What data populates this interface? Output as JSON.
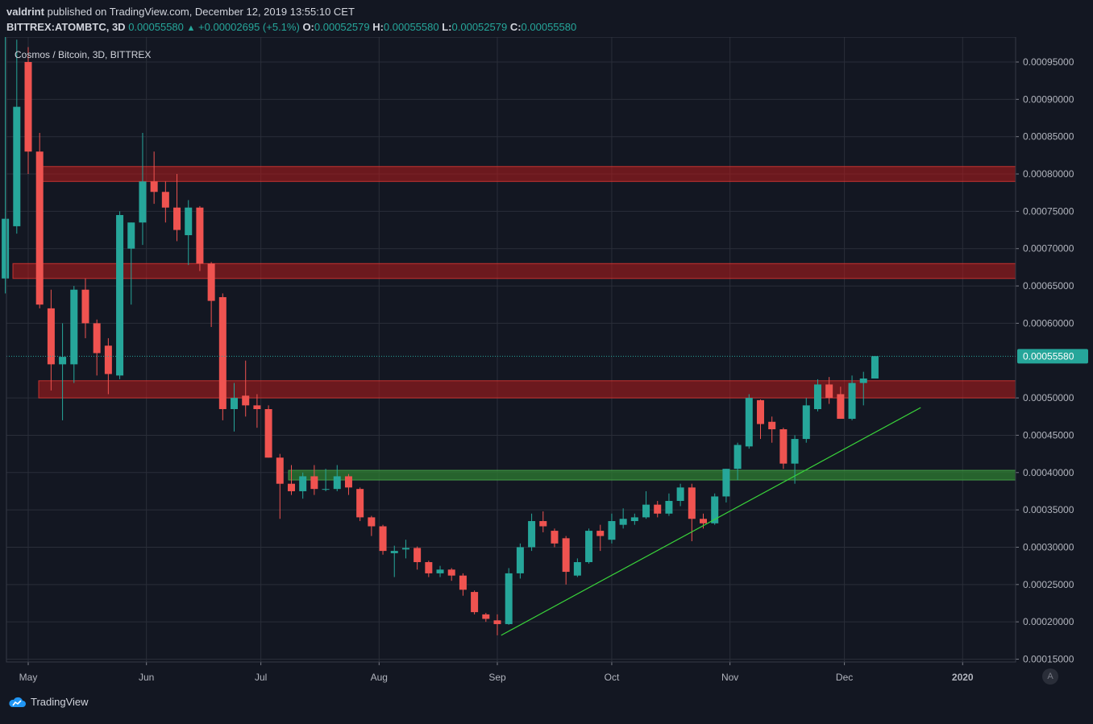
{
  "header": {
    "publisher": "valdrint",
    "published_text": "published on TradingView.com, December 12, 2019 13:55:10 CET",
    "symbol": "BITTREX:ATOMBTC, 3D",
    "last": "0.00055580",
    "change": "+0.00002695 (+5.1%)",
    "o_label": "O:",
    "o_value": "0.00052579",
    "h_label": "H:",
    "h_value": "0.00055580",
    "l_label": "L:",
    "l_value": "0.00052579",
    "c_label": "C:",
    "c_value": "0.00055580"
  },
  "chart_title": "Cosmos / Bitcoin, 3D, BITTREX",
  "footer": {
    "logo_text": "TradingView",
    "auto_label": "A"
  },
  "colors": {
    "up": "#26a69a",
    "down": "#ef5350",
    "resistance_zone": "#b71c1c",
    "support_zone": "#2e7d32",
    "trendline": "#39d33a",
    "price_label_bg": "#26a69a",
    "grid": "#2a2e39"
  },
  "chart_data": {
    "type": "candlestick",
    "x_ticks": [
      "May",
      "Jun",
      "Jul",
      "Aug",
      "Sep",
      "Oct",
      "Nov",
      "Dec",
      "2020"
    ],
    "y_ticks": [
      "0.00095000",
      "0.00090000",
      "0.00085000",
      "0.00080000",
      "0.00075000",
      "0.00070000",
      "0.00065000",
      "0.00060000",
      "0.00050000",
      "0.00045000",
      "0.00040000",
      "0.00035000",
      "0.00030000",
      "0.00025000",
      "0.00020000",
      "0.00015000"
    ],
    "ylim": [
      0.000148,
      0.000978
    ],
    "last_price_label": "0.00055580",
    "last_price": 0.0005558,
    "candles": [
      {
        "date": "2019-04-25",
        "o": 0.00066,
        "h": 0.00099,
        "l": 0.00064,
        "c": 0.00074
      },
      {
        "date": "2019-04-28",
        "o": 0.00073,
        "h": 0.00098,
        "l": 0.00072,
        "c": 0.00089
      },
      {
        "date": "2019-05-01",
        "o": 0.00095,
        "h": 0.00097,
        "l": 0.0008,
        "c": 0.00083
      },
      {
        "date": "2019-05-04",
        "o": 0.00083,
        "h": 0.000855,
        "l": 0.00062,
        "c": 0.000625
      },
      {
        "date": "2019-05-07",
        "o": 0.00062,
        "h": 0.000645,
        "l": 0.00051,
        "c": 0.000545
      },
      {
        "date": "2019-05-10",
        "o": 0.000545,
        "h": 0.0006,
        "l": 0.00047,
        "c": 0.000555
      },
      {
        "date": "2019-05-13",
        "o": 0.000545,
        "h": 0.00065,
        "l": 0.00052,
        "c": 0.000645
      },
      {
        "date": "2019-05-16",
        "o": 0.000645,
        "h": 0.00066,
        "l": 0.00058,
        "c": 0.0006
      },
      {
        "date": "2019-05-19",
        "o": 0.0006,
        "h": 0.000605,
        "l": 0.00053,
        "c": 0.00056
      },
      {
        "date": "2019-05-22",
        "o": 0.00057,
        "h": 0.00058,
        "l": 0.000505,
        "c": 0.000532
      },
      {
        "date": "2019-05-25",
        "o": 0.00053,
        "h": 0.00075,
        "l": 0.000525,
        "c": 0.000745
      },
      {
        "date": "2019-05-28",
        "o": 0.0007,
        "h": 0.000735,
        "l": 0.000625,
        "c": 0.000735
      },
      {
        "date": "2019-05-31",
        "o": 0.000735,
        "h": 0.000855,
        "l": 0.000705,
        "c": 0.00079
      },
      {
        "date": "2019-06-03",
        "o": 0.00079,
        "h": 0.00083,
        "l": 0.00076,
        "c": 0.000776
      },
      {
        "date": "2019-06-06",
        "o": 0.000776,
        "h": 0.00079,
        "l": 0.000735,
        "c": 0.000755
      },
      {
        "date": "2019-06-09",
        "o": 0.000755,
        "h": 0.0008,
        "l": 0.00071,
        "c": 0.000725
      },
      {
        "date": "2019-06-12",
        "o": 0.000718,
        "h": 0.000765,
        "l": 0.000678,
        "c": 0.000755
      },
      {
        "date": "2019-06-15",
        "o": 0.000755,
        "h": 0.000757,
        "l": 0.00067,
        "c": 0.00068
      },
      {
        "date": "2019-06-18",
        "o": 0.00068,
        "h": 0.000682,
        "l": 0.000595,
        "c": 0.00063
      },
      {
        "date": "2019-06-21",
        "o": 0.000635,
        "h": 0.00064,
        "l": 0.00047,
        "c": 0.000485
      },
      {
        "date": "2019-06-24",
        "o": 0.000485,
        "h": 0.00052,
        "l": 0.000455,
        "c": 0.0005
      },
      {
        "date": "2019-06-27",
        "o": 0.000503,
        "h": 0.00055,
        "l": 0.000475,
        "c": 0.00049
      },
      {
        "date": "2019-06-30",
        "o": 0.00049,
        "h": 0.000505,
        "l": 0.00046,
        "c": 0.000485
      },
      {
        "date": "2019-07-03",
        "o": 0.000485,
        "h": 0.00049,
        "l": 0.00042,
        "c": 0.00042
      },
      {
        "date": "2019-07-06",
        "o": 0.00042,
        "h": 0.000425,
        "l": 0.000338,
        "c": 0.000385
      },
      {
        "date": "2019-07-09",
        "o": 0.000385,
        "h": 0.00041,
        "l": 0.00037,
        "c": 0.000375
      },
      {
        "date": "2019-07-12",
        "o": 0.000375,
        "h": 0.0004,
        "l": 0.000365,
        "c": 0.000395
      },
      {
        "date": "2019-07-15",
        "o": 0.000395,
        "h": 0.00041,
        "l": 0.00037,
        "c": 0.000378
      },
      {
        "date": "2019-07-18",
        "o": 0.000378,
        "h": 0.000405,
        "l": 0.000375,
        "c": 0.000378
      },
      {
        "date": "2019-07-21",
        "o": 0.000378,
        "h": 0.00041,
        "l": 0.000375,
        "c": 0.000395
      },
      {
        "date": "2019-07-24",
        "o": 0.000395,
        "h": 0.000398,
        "l": 0.00037,
        "c": 0.00038
      },
      {
        "date": "2019-07-27",
        "o": 0.000378,
        "h": 0.00038,
        "l": 0.000335,
        "c": 0.00034
      },
      {
        "date": "2019-07-30",
        "o": 0.00034,
        "h": 0.000342,
        "l": 0.000315,
        "c": 0.000328
      },
      {
        "date": "2019-08-02",
        "o": 0.000328,
        "h": 0.00033,
        "l": 0.00029,
        "c": 0.000295
      },
      {
        "date": "2019-08-05",
        "o": 0.000292,
        "h": 0.000302,
        "l": 0.00026,
        "c": 0.000295
      },
      {
        "date": "2019-08-08",
        "o": 0.000297,
        "h": 0.00031,
        "l": 0.000285,
        "c": 0.000299
      },
      {
        "date": "2019-08-11",
        "o": 0.000299,
        "h": 0.000301,
        "l": 0.00027,
        "c": 0.00028
      },
      {
        "date": "2019-08-14",
        "o": 0.00028,
        "h": 0.000282,
        "l": 0.00026,
        "c": 0.000265
      },
      {
        "date": "2019-08-17",
        "o": 0.000265,
        "h": 0.000275,
        "l": 0.00026,
        "c": 0.00027
      },
      {
        "date": "2019-08-20",
        "o": 0.00027,
        "h": 0.000272,
        "l": 0.000255,
        "c": 0.000262
      },
      {
        "date": "2019-08-23",
        "o": 0.000262,
        "h": 0.000265,
        "l": 0.000235,
        "c": 0.000243
      },
      {
        "date": "2019-08-26",
        "o": 0.00024,
        "h": 0.000242,
        "l": 0.00021,
        "c": 0.000213
      },
      {
        "date": "2019-08-29",
        "o": 0.00021,
        "h": 0.000212,
        "l": 0.0002,
        "c": 0.000204
      },
      {
        "date": "2019-09-01",
        "o": 0.000202,
        "h": 0.00021,
        "l": 0.000182,
        "c": 0.000197
      },
      {
        "date": "2019-09-04",
        "o": 0.000197,
        "h": 0.000272,
        "l": 0.000196,
        "c": 0.000265
      },
      {
        "date": "2019-09-07",
        "o": 0.000265,
        "h": 0.000305,
        "l": 0.000258,
        "c": 0.0003
      },
      {
        "date": "2019-09-10",
        "o": 0.0003,
        "h": 0.000345,
        "l": 0.000295,
        "c": 0.000335
      },
      {
        "date": "2019-09-13",
        "o": 0.000335,
        "h": 0.000348,
        "l": 0.00032,
        "c": 0.000328
      },
      {
        "date": "2019-09-16",
        "o": 0.000322,
        "h": 0.000325,
        "l": 0.0003,
        "c": 0.000305
      },
      {
        "date": "2019-09-19",
        "o": 0.000312,
        "h": 0.000315,
        "l": 0.00025,
        "c": 0.000267
      },
      {
        "date": "2019-09-22",
        "o": 0.000262,
        "h": 0.000285,
        "l": 0.00026,
        "c": 0.00028
      },
      {
        "date": "2019-09-25",
        "o": 0.00028,
        "h": 0.000325,
        "l": 0.000278,
        "c": 0.000322
      },
      {
        "date": "2019-09-28",
        "o": 0.000322,
        "h": 0.00033,
        "l": 0.000295,
        "c": 0.000315
      },
      {
        "date": "2019-10-01",
        "o": 0.00031,
        "h": 0.000345,
        "l": 0.000305,
        "c": 0.000335
      },
      {
        "date": "2019-10-04",
        "o": 0.00033,
        "h": 0.000352,
        "l": 0.000325,
        "c": 0.000338
      },
      {
        "date": "2019-10-07",
        "o": 0.000335,
        "h": 0.000345,
        "l": 0.00033,
        "c": 0.00034
      },
      {
        "date": "2019-10-10",
        "o": 0.00034,
        "h": 0.000375,
        "l": 0.000338,
        "c": 0.000357
      },
      {
        "date": "2019-10-13",
        "o": 0.000357,
        "h": 0.000362,
        "l": 0.00034,
        "c": 0.000345
      },
      {
        "date": "2019-10-16",
        "o": 0.000345,
        "h": 0.000372,
        "l": 0.000342,
        "c": 0.000362
      },
      {
        "date": "2019-10-19",
        "o": 0.000362,
        "h": 0.000385,
        "l": 0.000355,
        "c": 0.00038
      },
      {
        "date": "2019-10-22",
        "o": 0.00038,
        "h": 0.000385,
        "l": 0.000308,
        "c": 0.000338
      },
      {
        "date": "2019-10-25",
        "o": 0.000338,
        "h": 0.000345,
        "l": 0.000325,
        "c": 0.000332
      },
      {
        "date": "2019-10-28",
        "o": 0.000332,
        "h": 0.000372,
        "l": 0.00033,
        "c": 0.000368
      },
      {
        "date": "2019-10-31",
        "o": 0.000368,
        "h": 0.000405,
        "l": 0.00036,
        "c": 0.000405
      },
      {
        "date": "2019-11-03",
        "o": 0.000405,
        "h": 0.00044,
        "l": 0.00039,
        "c": 0.000437
      },
      {
        "date": "2019-11-06",
        "o": 0.000435,
        "h": 0.000505,
        "l": 0.000432,
        "c": 0.0005
      },
      {
        "date": "2019-11-09",
        "o": 0.000497,
        "h": 0.000498,
        "l": 0.000445,
        "c": 0.000465
      },
      {
        "date": "2019-11-12",
        "o": 0.000468,
        "h": 0.000475,
        "l": 0.00044,
        "c": 0.000458
      },
      {
        "date": "2019-11-15",
        "o": 0.000458,
        "h": 0.00046,
        "l": 0.000405,
        "c": 0.000412
      },
      {
        "date": "2019-11-18",
        "o": 0.000412,
        "h": 0.00045,
        "l": 0.000385,
        "c": 0.000445
      },
      {
        "date": "2019-11-21",
        "o": 0.000445,
        "h": 0.0005,
        "l": 0.00044,
        "c": 0.00049
      },
      {
        "date": "2019-11-24",
        "o": 0.000485,
        "h": 0.000525,
        "l": 0.000482,
        "c": 0.000518
      },
      {
        "date": "2019-11-27",
        "o": 0.000518,
        "h": 0.000528,
        "l": 0.000492,
        "c": 0.0005
      },
      {
        "date": "2019-11-30",
        "o": 0.000505,
        "h": 0.000515,
        "l": 0.000472,
        "c": 0.000472
      },
      {
        "date": "2019-12-03",
        "o": 0.000472,
        "h": 0.00053,
        "l": 0.00047,
        "c": 0.00052
      },
      {
        "date": "2019-12-06",
        "o": 0.00052,
        "h": 0.000535,
        "l": 0.00049,
        "c": 0.000526
      },
      {
        "date": "2019-12-09",
        "o": 0.000526,
        "h": 0.000556,
        "l": 0.000526,
        "c": 0.000556
      }
    ],
    "zones": [
      {
        "type": "resistance",
        "from": 0.00079,
        "to": 0.00081
      },
      {
        "type": "resistance",
        "from": 0.00066,
        "to": 0.00068
      },
      {
        "type": "resistance",
        "from": 0.0005,
        "to": 0.000523
      },
      {
        "type": "support",
        "from": 0.00039,
        "to": 0.000403
      }
    ],
    "trendline": {
      "x1": "2019-09-02",
      "y1": 0.000182,
      "x2": "2019-12-21",
      "y2": 0.000487
    },
    "grid": true
  }
}
